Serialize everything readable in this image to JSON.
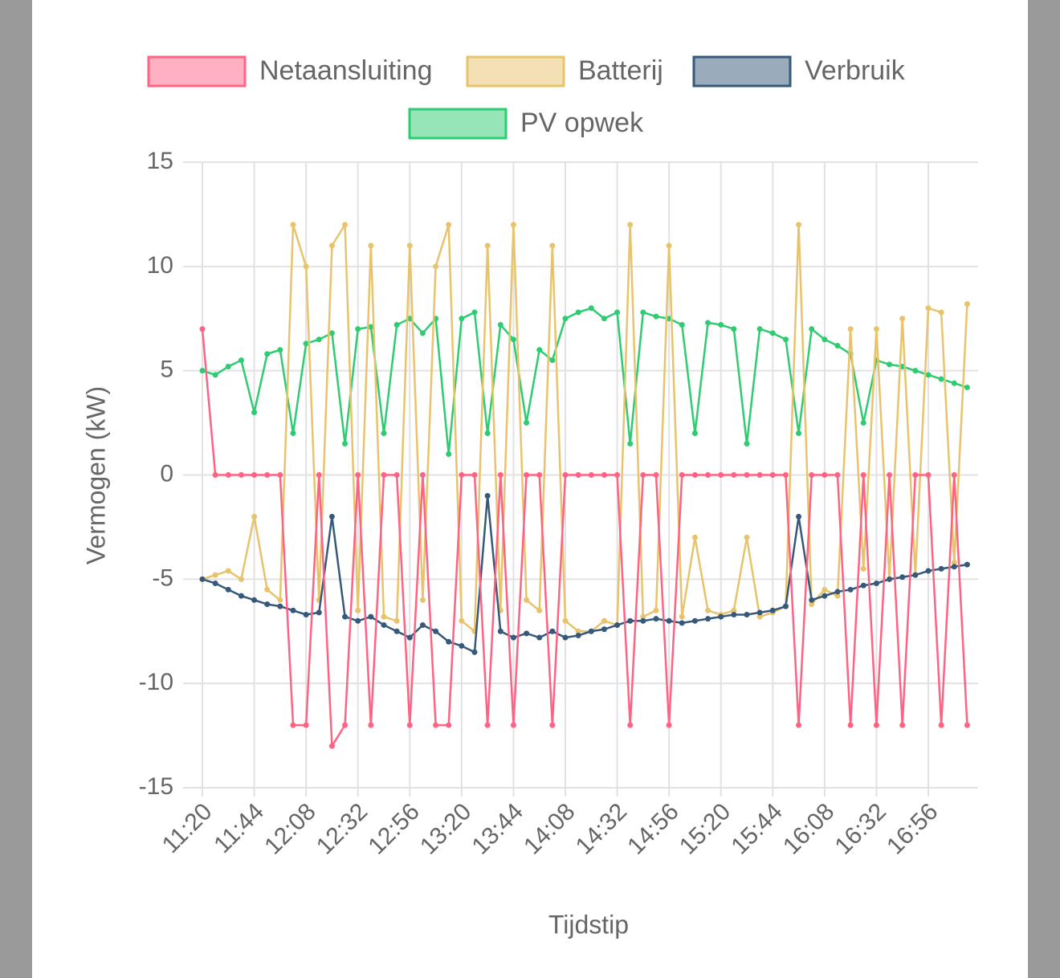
{
  "chart_data": {
    "type": "line",
    "y_label": "Vermogen (kW)",
    "x_label": "Tijdstip",
    "categories": [
      "11:20",
      null,
      null,
      null,
      "11:44",
      null,
      null,
      null,
      "12:08",
      null,
      null,
      null,
      "12:32",
      null,
      null,
      null,
      "12:56",
      null,
      null,
      null,
      "13:20",
      null,
      null,
      null,
      "13:44",
      null,
      null,
      null,
      "14:08",
      null,
      null,
      null,
      "14:32",
      null,
      null,
      null,
      "14:56",
      null,
      null,
      null,
      "15:20",
      null,
      null,
      null,
      "15:44",
      null,
      null,
      null,
      "16:08",
      null,
      null,
      null,
      "16:32",
      null,
      null,
      null,
      "16:56",
      null,
      null,
      null
    ],
    "ylim": [
      -15,
      15
    ],
    "yticks": [
      -15,
      -10,
      -5,
      0,
      5,
      10,
      15
    ],
    "grid": true,
    "series": [
      {
        "name": "Netaansluiting",
        "color": "#ff6384",
        "values": [
          7,
          0,
          0,
          0,
          0,
          0,
          0,
          -12,
          -12,
          0,
          -13,
          -12,
          0,
          -12,
          0,
          0,
          -12,
          0,
          -12,
          -12,
          0,
          0,
          -12,
          0,
          -12,
          0,
          0,
          -12,
          0,
          0,
          0,
          0,
          0,
          -12,
          0,
          0,
          -12,
          0,
          0,
          0,
          0,
          0,
          0,
          0,
          0,
          0,
          -12,
          0,
          0,
          0,
          -12,
          0,
          -12,
          0,
          -12,
          0,
          0,
          -12,
          0,
          -12
        ]
      },
      {
        "name": "Batterij",
        "color": "#e8c36b",
        "values": [
          -5,
          -4.8,
          -4.6,
          -5,
          -2,
          -5.5,
          -6,
          12,
          10,
          -6,
          11,
          12,
          -6.5,
          11,
          -6.8,
          -7,
          11,
          -6,
          10,
          12,
          -7,
          -7.5,
          11,
          -6.5,
          12,
          -6,
          -6.5,
          11,
          -7,
          -7.5,
          -7.5,
          -7,
          -7.2,
          12,
          -6.8,
          -6.5,
          11,
          -6.8,
          -3,
          -6.5,
          -6.7,
          -6.5,
          -3,
          -6.8,
          -6.6,
          -6.3,
          12,
          -6.2,
          -5.5,
          -5.8,
          7,
          -4.5,
          7,
          -5,
          7.5,
          -4.8,
          8,
          7.8,
          -4.2,
          8.2
        ]
      },
      {
        "name": "Verbruik",
        "color": "#36587a",
        "values": [
          -5,
          -5.2,
          -5.5,
          -5.8,
          -6,
          -6.2,
          -6.3,
          -6.5,
          -6.7,
          -6.6,
          -2,
          -6.8,
          -7,
          -6.8,
          -7.2,
          -7.5,
          -7.8,
          -7.2,
          -7.5,
          -8,
          -8.2,
          -8.5,
          -1,
          -7.5,
          -7.8,
          -7.6,
          -7.8,
          -7.5,
          -7.8,
          -7.7,
          -7.5,
          -7.4,
          -7.2,
          -7,
          -7,
          -6.9,
          -7,
          -7.1,
          -7,
          -6.9,
          -6.8,
          -6.7,
          -6.7,
          -6.6,
          -6.5,
          -6.3,
          -2,
          -6,
          -5.8,
          -5.6,
          -5.5,
          -5.3,
          -5.2,
          -5,
          -4.9,
          -4.8,
          -4.6,
          -4.5,
          -4.4,
          -4.3
        ]
      },
      {
        "name": "PV opwek",
        "color": "#2ecc71",
        "values": [
          5,
          4.8,
          5.2,
          5.5,
          3,
          5.8,
          6,
          2,
          6.3,
          6.5,
          6.8,
          1.5,
          7,
          7.1,
          2,
          7.2,
          7.5,
          6.8,
          7.5,
          1,
          7.5,
          7.8,
          2,
          7.2,
          6.5,
          2.5,
          6,
          5.5,
          7.5,
          7.8,
          8,
          7.5,
          7.8,
          1.5,
          7.8,
          7.6,
          7.5,
          7.2,
          2,
          7.3,
          7.2,
          7,
          1.5,
          7,
          6.8,
          6.5,
          2,
          7,
          6.5,
          6.2,
          5.8,
          2.5,
          5.5,
          5.3,
          5.2,
          5,
          4.8,
          4.6,
          4.4,
          4.2
        ]
      }
    ]
  }
}
